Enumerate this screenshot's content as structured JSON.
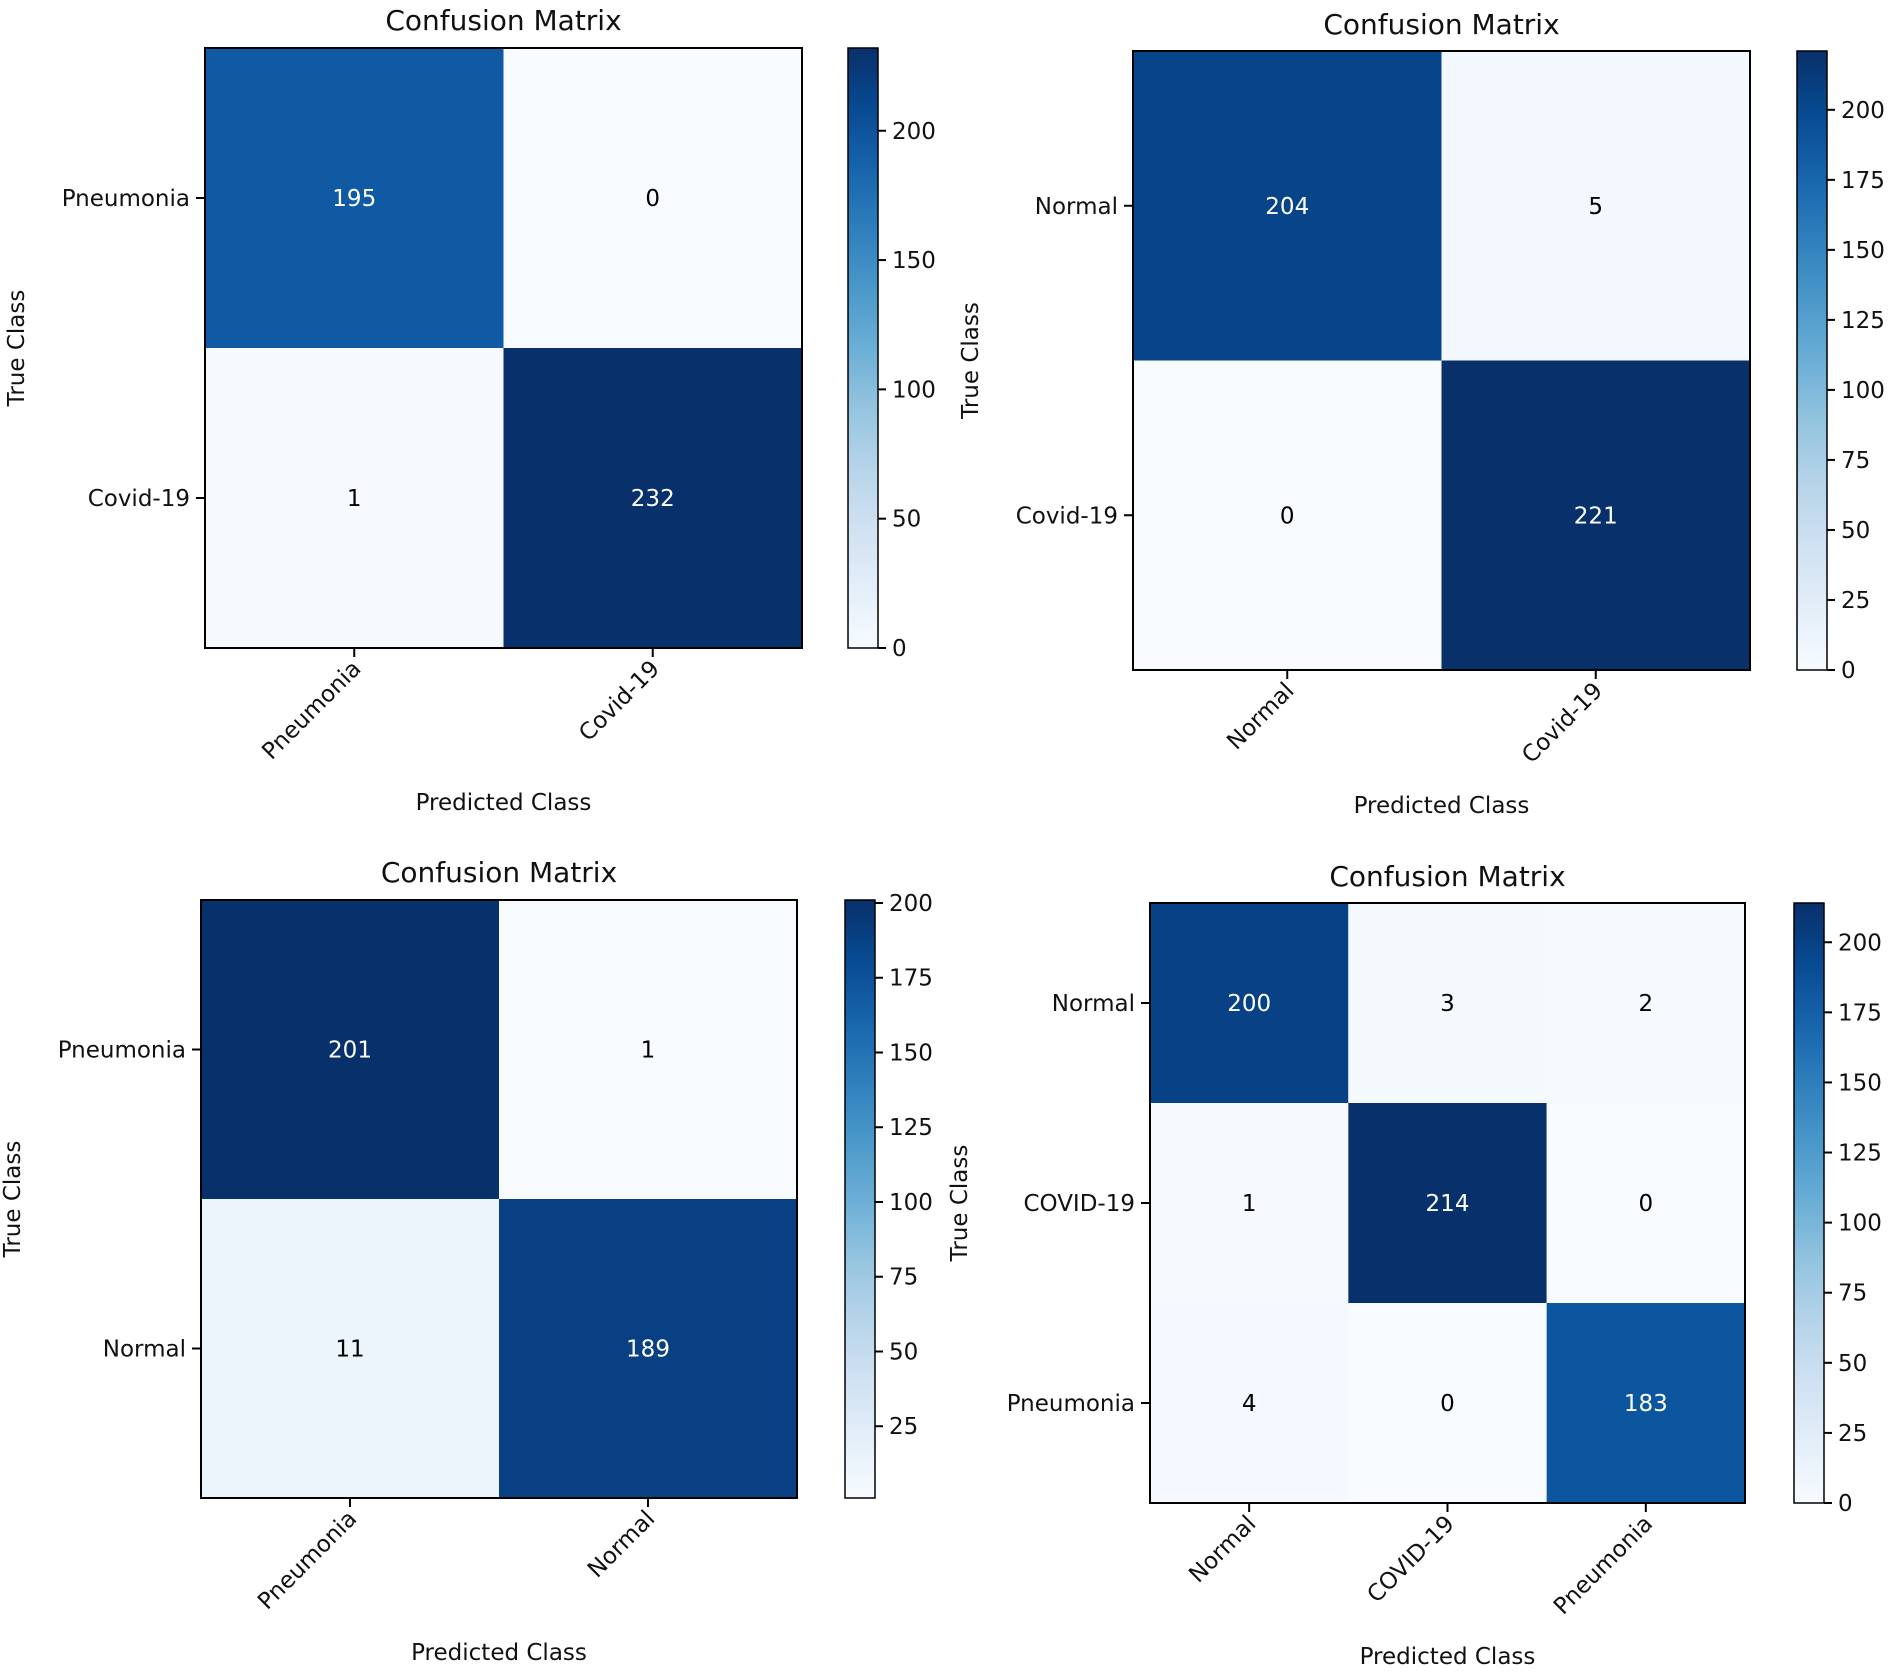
{
  "chart_data": [
    {
      "type": "heatmap",
      "title": "Confusion Matrix",
      "xlabel": "Predicted Class",
      "ylabel": "True Class",
      "row_labels": [
        "Pneumonia",
        "Covid-19"
      ],
      "col_labels": [
        "Pneumonia",
        "Covid-19"
      ],
      "values": [
        [
          195,
          0
        ],
        [
          1,
          232
        ]
      ],
      "colorbar": {
        "ticks": [
          0,
          50,
          100,
          150,
          200
        ],
        "range": [
          0,
          232
        ]
      },
      "colormap": "Blues"
    },
    {
      "type": "heatmap",
      "title": "Confusion Matrix",
      "xlabel": "Predicted Class",
      "ylabel": "True Class",
      "row_labels": [
        "Normal",
        "Covid-19"
      ],
      "col_labels": [
        "Normal",
        "Covid-19"
      ],
      "values": [
        [
          204,
          5
        ],
        [
          0,
          221
        ]
      ],
      "colorbar": {
        "ticks": [
          0,
          25,
          50,
          75,
          100,
          125,
          150,
          175,
          200
        ],
        "range": [
          0,
          221
        ]
      },
      "colormap": "Blues"
    },
    {
      "type": "heatmap",
      "title": "Confusion Matrix",
      "xlabel": "Predicted Class",
      "ylabel": "True Class",
      "row_labels": [
        "Pneumonia",
        "Normal"
      ],
      "col_labels": [
        "Pneumonia",
        "Normal"
      ],
      "values": [
        [
          201,
          1
        ],
        [
          11,
          189
        ]
      ],
      "colorbar": {
        "ticks": [
          25,
          50,
          75,
          100,
          125,
          150,
          175,
          200
        ],
        "range": [
          1,
          201
        ]
      },
      "colormap": "Blues"
    },
    {
      "type": "heatmap",
      "title": "Confusion Matrix",
      "xlabel": "Predicted Class",
      "ylabel": "True Class",
      "row_labels": [
        "Normal",
        "COVID-19",
        "Pneumonia"
      ],
      "col_labels": [
        "Normal",
        "COVID-19",
        "Pneumonia"
      ],
      "values": [
        [
          200,
          3,
          2
        ],
        [
          1,
          214,
          0
        ],
        [
          4,
          0,
          183
        ]
      ],
      "colorbar": {
        "ticks": [
          0,
          25,
          50,
          75,
          100,
          125,
          150,
          175,
          200
        ],
        "range": [
          0,
          214
        ]
      },
      "colormap": "Blues"
    }
  ]
}
